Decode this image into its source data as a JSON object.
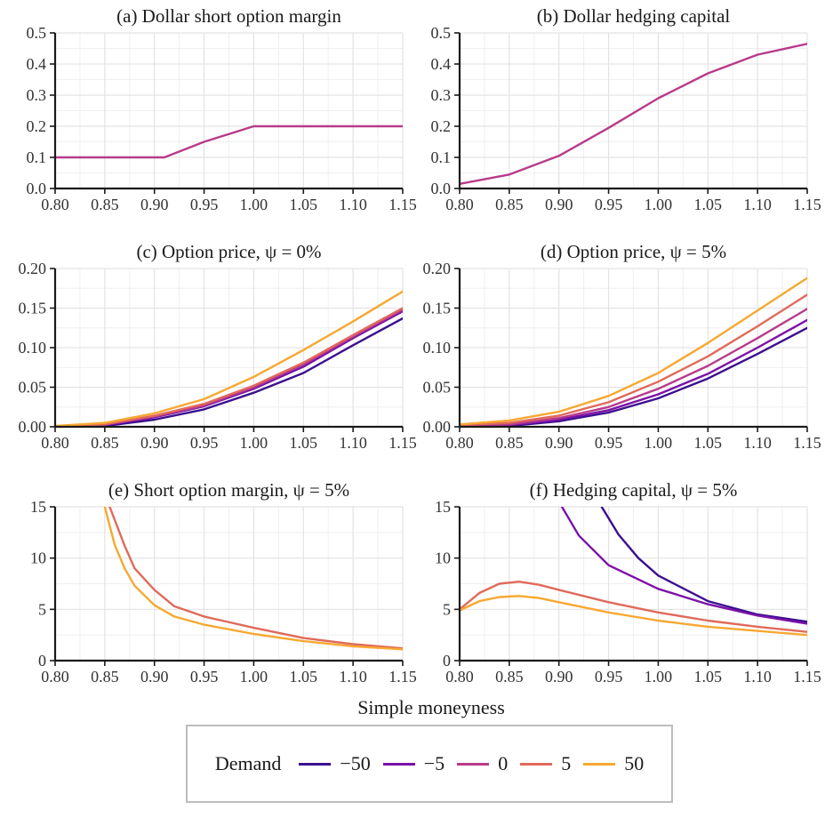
{
  "chart_data": {
    "type": "line",
    "xlabel": "Simple moneyness",
    "legend": {
      "title": "Demand",
      "position": "bottom",
      "entries": [
        {
          "label": "−50",
          "color": "#3b0f8f"
        },
        {
          "label": "−5",
          "color": "#7b12a8"
        },
        {
          "label": "0",
          "color": "#b83b8a"
        },
        {
          "label": "5",
          "color": "#e06a5a"
        },
        {
          "label": "50",
          "color": "#f7a831"
        }
      ]
    },
    "xlim": [
      0.8,
      1.15
    ],
    "xticks": [
      "0.80",
      "0.85",
      "0.90",
      "0.95",
      "1.00",
      "1.05",
      "1.10",
      "1.15"
    ],
    "panels": [
      {
        "title": "(a) Dollar short option margin",
        "ylim": [
          0,
          0.5
        ],
        "yticks": [
          "0.0",
          "0.1",
          "0.2",
          "0.3",
          "0.4",
          "0.5"
        ],
        "series": [
          {
            "color": "#b83b8a",
            "x": [
              0.8,
              0.91,
              0.95,
              1.0,
              1.05,
              1.1,
              1.15
            ],
            "y": [
              0.1,
              0.1,
              0.15,
              0.2,
              0.2,
              0.2,
              0.2
            ]
          }
        ]
      },
      {
        "title": "(b) Dollar hedging capital",
        "ylim": [
          0,
          0.5
        ],
        "yticks": [
          "0.0",
          "0.1",
          "0.2",
          "0.3",
          "0.4",
          "0.5"
        ],
        "series": [
          {
            "color": "#b83b8a",
            "x": [
              0.8,
              0.85,
              0.9,
              0.95,
              1.0,
              1.05,
              1.1,
              1.15
            ],
            "y": [
              0.015,
              0.045,
              0.105,
              0.195,
              0.29,
              0.37,
              0.43,
              0.465
            ]
          }
        ]
      },
      {
        "title": "(c) Option price, ψ = 0%",
        "ylim": [
          0,
          0.2
        ],
        "yticks": [
          "0.00",
          "0.05",
          "0.10",
          "0.15",
          "0.20"
        ],
        "series": [
          {
            "color": "#3b0f8f",
            "x": [
              0.8,
              0.85,
              0.9,
              0.95,
              1.0,
              1.05,
              1.1,
              1.15
            ],
            "y": [
              0.0,
              0.001,
              0.009,
              0.022,
              0.043,
              0.068,
              0.103,
              0.137
            ]
          },
          {
            "color": "#7b12a8",
            "x": [
              0.8,
              0.85,
              0.9,
              0.95,
              1.0,
              1.05,
              1.1,
              1.15
            ],
            "y": [
              0.0,
              0.002,
              0.012,
              0.026,
              0.048,
              0.076,
              0.112,
              0.146
            ]
          },
          {
            "color": "#b83b8a",
            "x": [
              0.8,
              0.85,
              0.9,
              0.95,
              1.0,
              1.05,
              1.1,
              1.15
            ],
            "y": [
              0.0,
              0.003,
              0.013,
              0.027,
              0.05,
              0.079,
              0.114,
              0.148
            ]
          },
          {
            "color": "#e06a5a",
            "x": [
              0.8,
              0.85,
              0.9,
              0.95,
              1.0,
              1.05,
              1.1,
              1.15
            ],
            "y": [
              0.0,
              0.003,
              0.014,
              0.029,
              0.052,
              0.081,
              0.116,
              0.15
            ]
          },
          {
            "color": "#f7a831",
            "x": [
              0.8,
              0.85,
              0.9,
              0.95,
              1.0,
              1.05,
              1.1,
              1.15
            ],
            "y": [
              0.001,
              0.005,
              0.017,
              0.035,
              0.063,
              0.097,
              0.133,
              0.171
            ]
          }
        ]
      },
      {
        "title": "(d) Option price, ψ = 5%",
        "ylim": [
          0,
          0.2
        ],
        "yticks": [
          "0.00",
          "0.05",
          "0.10",
          "0.15",
          "0.20"
        ],
        "series": [
          {
            "color": "#3b0f8f",
            "x": [
              0.8,
              0.85,
              0.9,
              0.95,
              1.0,
              1.05,
              1.1,
              1.15
            ],
            "y": [
              0.0,
              0.001,
              0.007,
              0.018,
              0.036,
              0.061,
              0.092,
              0.125
            ]
          },
          {
            "color": "#7b12a8",
            "x": [
              0.8,
              0.85,
              0.9,
              0.95,
              1.0,
              1.05,
              1.1,
              1.15
            ],
            "y": [
              0.0,
              0.002,
              0.009,
              0.021,
              0.041,
              0.067,
              0.1,
              0.135
            ]
          },
          {
            "color": "#b83b8a",
            "x": [
              0.8,
              0.85,
              0.9,
              0.95,
              1.0,
              1.05,
              1.1,
              1.15
            ],
            "y": [
              0.001,
              0.003,
              0.011,
              0.025,
              0.048,
              0.077,
              0.112,
              0.149
            ]
          },
          {
            "color": "#e06a5a",
            "x": [
              0.8,
              0.85,
              0.9,
              0.95,
              1.0,
              1.05,
              1.1,
              1.15
            ],
            "y": [
              0.002,
              0.005,
              0.014,
              0.031,
              0.057,
              0.089,
              0.127,
              0.167
            ]
          },
          {
            "color": "#f7a831",
            "x": [
              0.8,
              0.85,
              0.9,
              0.95,
              1.0,
              1.05,
              1.1,
              1.15
            ],
            "y": [
              0.003,
              0.008,
              0.019,
              0.039,
              0.068,
              0.106,
              0.147,
              0.188
            ]
          }
        ]
      },
      {
        "title": "(e) Short option margin, ψ = 5%",
        "ylim": [
          0,
          15
        ],
        "yticks": [
          "0",
          "5",
          "10",
          "15"
        ],
        "series": [
          {
            "color": "#e06a5a",
            "x": [
              0.855,
              0.87,
              0.88,
              0.9,
              0.92,
              0.95,
              1.0,
              1.05,
              1.1,
              1.15
            ],
            "y": [
              15.0,
              11.2,
              9.0,
              6.9,
              5.3,
              4.3,
              3.2,
              2.2,
              1.6,
              1.2
            ]
          },
          {
            "color": "#f7a831",
            "x": [
              0.85,
              0.86,
              0.87,
              0.88,
              0.9,
              0.92,
              0.95,
              1.0,
              1.05,
              1.1,
              1.15
            ],
            "y": [
              15.0,
              11.3,
              9.0,
              7.3,
              5.4,
              4.3,
              3.5,
              2.6,
              1.9,
              1.4,
              1.1
            ]
          }
        ]
      },
      {
        "title": "(f) Hedging capital, ψ = 5%",
        "ylim": [
          0,
          15
        ],
        "yticks": [
          "0",
          "5",
          "10",
          "15"
        ],
        "series": [
          {
            "color": "#3b0f8f",
            "x": [
              0.943,
              0.96,
              0.98,
              1.0,
              1.05,
              1.1,
              1.15
            ],
            "y": [
              15.0,
              12.3,
              10.0,
              8.3,
              5.8,
              4.5,
              3.8
            ]
          },
          {
            "color": "#7b12a8",
            "x": [
              0.903,
              0.92,
              0.95,
              1.0,
              1.05,
              1.1,
              1.15
            ],
            "y": [
              15.0,
              12.2,
              9.3,
              7.0,
              5.5,
              4.4,
              3.6
            ]
          },
          {
            "color": "#e06a5a",
            "x": [
              0.8,
              0.82,
              0.84,
              0.86,
              0.88,
              0.9,
              0.95,
              1.0,
              1.05,
              1.1,
              1.15
            ],
            "y": [
              5.0,
              6.6,
              7.5,
              7.7,
              7.4,
              6.9,
              5.7,
              4.7,
              3.9,
              3.3,
              2.8
            ]
          },
          {
            "color": "#f7a831",
            "x": [
              0.8,
              0.82,
              0.84,
              0.86,
              0.88,
              0.9,
              0.95,
              1.0,
              1.05,
              1.1,
              1.15
            ],
            "y": [
              4.9,
              5.8,
              6.2,
              6.3,
              6.1,
              5.7,
              4.7,
              3.9,
              3.3,
              2.9,
              2.5
            ]
          }
        ]
      }
    ]
  }
}
